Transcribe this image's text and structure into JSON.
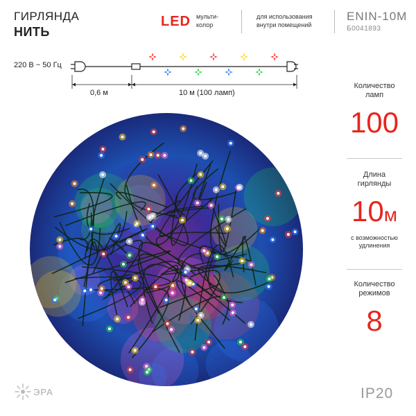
{
  "header": {
    "title_line1": "ГИРЛЯНДА",
    "title_line2": "НИТЬ",
    "led": "LED",
    "led_sub1": "мульти-",
    "led_sub2": "колор",
    "usage1": "для использования",
    "usage2": "внутри помещений",
    "model": "ENIN-10M",
    "code": "Б0041893"
  },
  "diagram": {
    "voltage": "220 В ~ 50 Гц",
    "cable_length": "0,6 м",
    "string_length": "10 м (100 ламп)",
    "bulb_colors": [
      "#ff2a2a",
      "#2b7bff",
      "#ffd21a",
      "#1fd14a",
      "#ff2a2a",
      "#2b7bff",
      "#ffd21a",
      "#1fd14a",
      "#ff2a2a"
    ]
  },
  "specs": {
    "lamps_label1": "Количество",
    "lamps_label2": "ламп",
    "lamps_value": "100",
    "length_label1": "Длина",
    "length_label2": "гирлянды",
    "length_value": "10",
    "length_unit": "м",
    "length_note1": "с возможностью",
    "length_note2": "удлинения",
    "modes_label1": "Количество",
    "modes_label2": "режимов",
    "modes_value": "8"
  },
  "footer": {
    "brand": "ЭРА",
    "ip": "IP20"
  },
  "colors": {
    "accent": "#e5261e",
    "photo_bg": "#2a1f6e"
  }
}
